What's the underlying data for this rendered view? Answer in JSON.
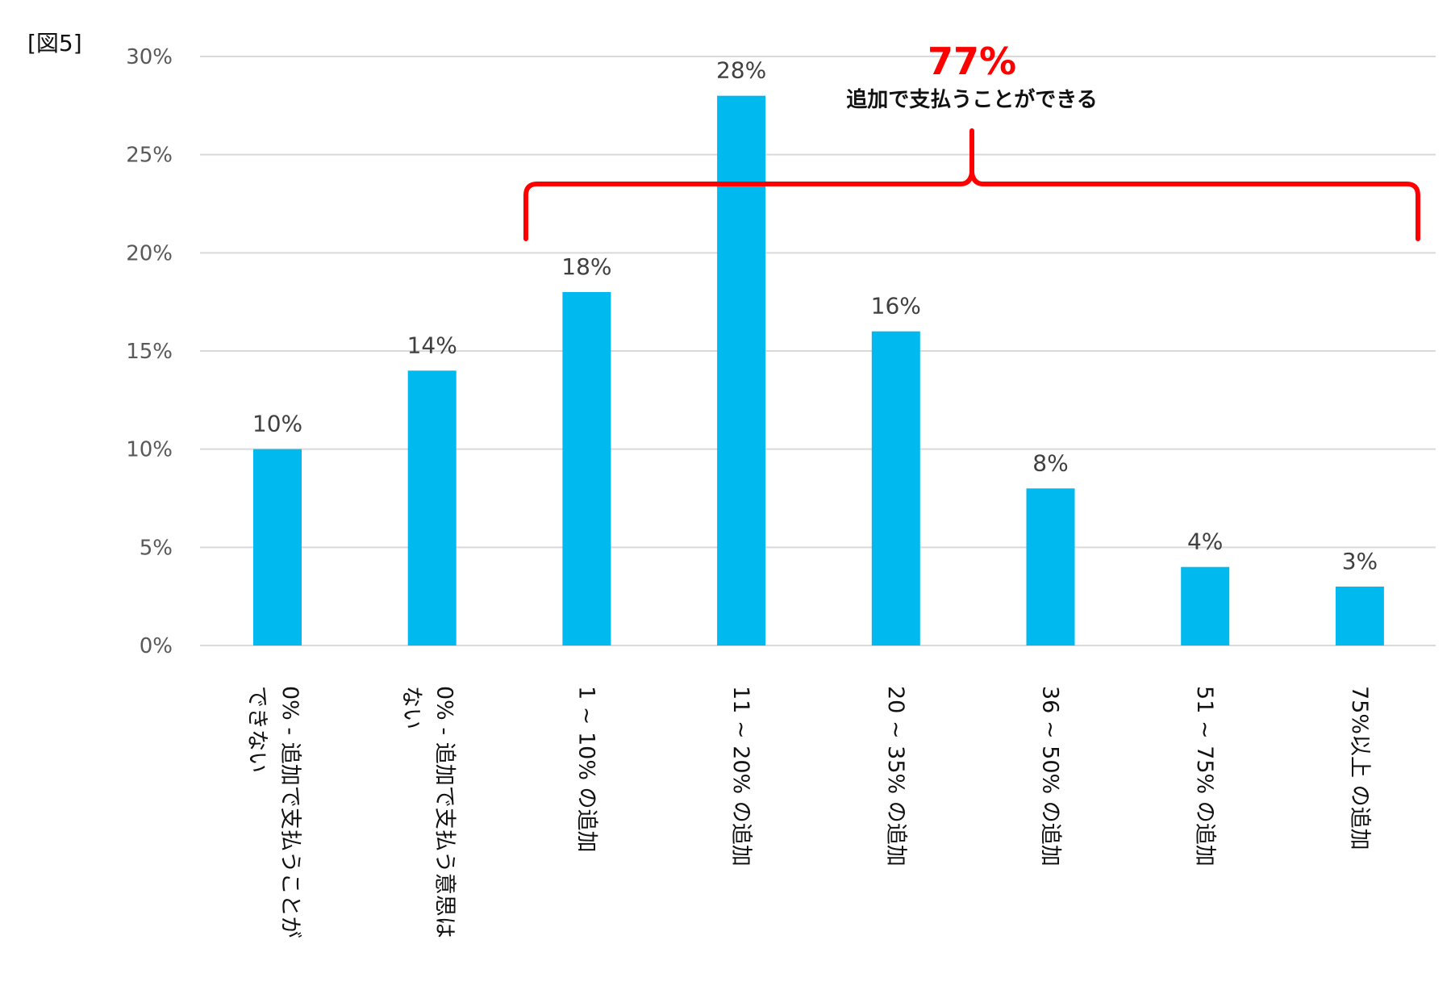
{
  "figure_label": "[図5]",
  "colors": {
    "bar": "#00B9EF",
    "bracket": "#FF0000",
    "grid": "#D9D9D9"
  },
  "annotation": {
    "value": "77%",
    "text": "追加で支払うことができる"
  },
  "chart_data": {
    "type": "bar",
    "categories": [
      [
        "0% - 追加で支払うことが",
        "できない"
      ],
      [
        "0% - 追加で支払う意思は",
        "ない"
      ],
      [
        "1 ~ 10% の追加"
      ],
      [
        "11 ~ 20% の追加"
      ],
      [
        "20 ~ 35% の追加"
      ],
      [
        "36 ~ 50% の追加"
      ],
      [
        "51 ~ 75% の追加"
      ],
      [
        "75%以上 の追加"
      ]
    ],
    "values": [
      10,
      14,
      18,
      28,
      16,
      8,
      4,
      3
    ],
    "value_labels": [
      "10%",
      "14%",
      "18%",
      "28%",
      "16%",
      "8%",
      "4%",
      "3%"
    ],
    "ylim": [
      0,
      30
    ],
    "yticks": [
      0,
      5,
      10,
      15,
      20,
      25,
      30
    ],
    "ytick_labels": [
      "0%",
      "5%",
      "10%",
      "15%",
      "20%",
      "25%",
      "30%"
    ],
    "grid": true,
    "xlabel": "",
    "ylabel": "",
    "title": ""
  }
}
